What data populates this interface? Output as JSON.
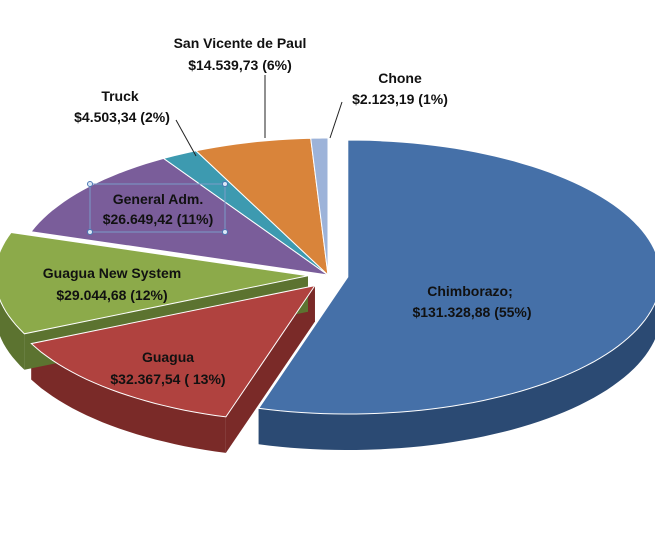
{
  "chart_data": {
    "type": "pie",
    "title": "",
    "slices": [
      {
        "name": "Chimborazo",
        "label_line1": "Chimborazo;",
        "label_line2": "$131.328,88 (55%)",
        "value": 131328.88,
        "percent": 55,
        "color": "#4570A8",
        "side": "#2B4A73",
        "exploded": true
      },
      {
        "name": "Guagua",
        "label_line1": "Guagua",
        "label_line2": "$32.367,54 ( 13%)",
        "value": 32367.54,
        "percent": 13,
        "color": "#B0423F",
        "side": "#7A2A28",
        "exploded": true
      },
      {
        "name": "Guagua New System",
        "label_line1": "Guagua New System",
        "label_line2": "$29.044,68 (12%)",
        "value": 29044.68,
        "percent": 12,
        "color": "#8CAA4A",
        "side": "#5C7330",
        "exploded": true
      },
      {
        "name": "General Adm.",
        "label_line1": "General Adm.",
        "label_line2": "$26.649,42 (11%)",
        "value": 26649.42,
        "percent": 11,
        "color": "#7A5D9A",
        "side": "#4F3C66",
        "exploded": false
      },
      {
        "name": "Truck",
        "label_line1": "Truck",
        "label_line2": "$4.503,34 (2%)",
        "value": 4503.34,
        "percent": 2,
        "color": "#3D9AB0",
        "side": "#276373",
        "exploded": false
      },
      {
        "name": "San Vicente de Paul",
        "label_line1": "San Vicente de Paul",
        "label_line2": "$14.539,73 (6%)",
        "value": 14539.73,
        "percent": 6,
        "color": "#D9843A",
        "side": "#8F5524",
        "exploded": false
      },
      {
        "name": "Chone",
        "label_line1": "Chone",
        "label_line2": "$2.123,19 (1%)",
        "value": 2123.19,
        "percent": 1,
        "color": "#9DB3D9",
        "side": "#6A7FA3",
        "exploded": false
      }
    ],
    "legend": "none",
    "style": "3d-exploded-pie"
  }
}
